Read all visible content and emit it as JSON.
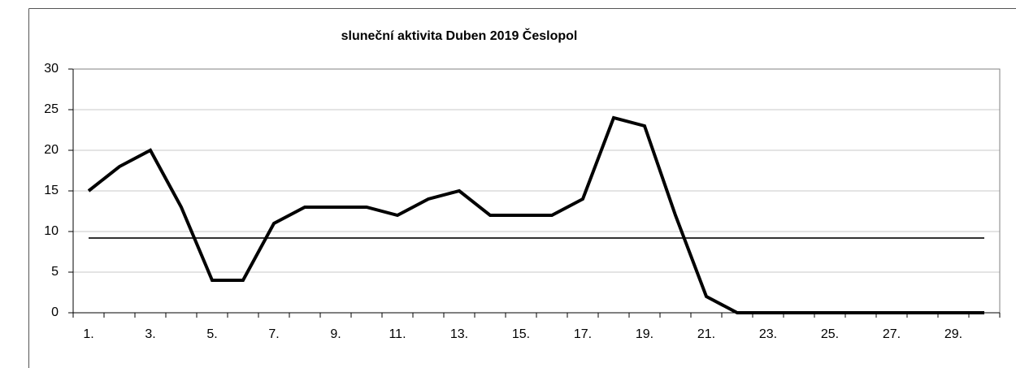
{
  "chart_data": {
    "type": "line",
    "title": "sluneční aktivita Duben 2019 Česlopol",
    "categories": [
      "1.",
      null,
      "3.",
      null,
      "5.",
      null,
      "7.",
      null,
      "9.",
      null,
      "11.",
      null,
      "13.",
      null,
      "15.",
      null,
      "17.",
      null,
      "19.",
      null,
      "21.",
      null,
      "23.",
      null,
      "25.",
      null,
      "27.",
      null,
      "29.",
      null
    ],
    "series": [
      {
        "color": "#000000",
        "values": [
          15,
          18,
          20,
          13,
          4,
          4,
          11,
          13,
          13,
          13,
          12,
          14,
          15,
          12,
          12,
          12,
          14,
          24,
          23,
          12,
          2,
          0,
          0,
          0,
          0,
          0,
          0,
          0,
          0,
          0
        ]
      }
    ],
    "reference_line": {
      "value": 9.2,
      "color": "#333333"
    },
    "ylim": [
      0,
      30
    ],
    "yticks": [
      0,
      5,
      10,
      15,
      20,
      25,
      30
    ],
    "grid": true
  }
}
